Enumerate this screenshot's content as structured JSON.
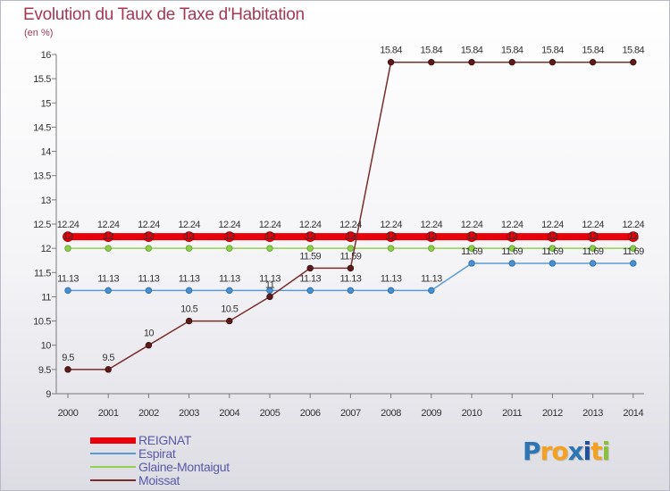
{
  "title": "Evolution du Taux de Taxe d'Habitation",
  "subtitle": "(en %)",
  "chart_data": {
    "type": "line",
    "title": "Evolution du Taux de Taxe d'Habitation",
    "ylabel": "(en %)",
    "xlabel": "",
    "x": [
      "2000",
      "2001",
      "2002",
      "2003",
      "2004",
      "2005",
      "2006",
      "2007",
      "2008",
      "2009",
      "2010",
      "2011",
      "2012",
      "2013",
      "2014"
    ],
    "ylim": [
      9,
      16
    ],
    "y_ticks": [
      "9",
      "9.5",
      "10",
      "10.5",
      "11",
      "11.5",
      "12",
      "12.5",
      "13",
      "13.5",
      "14",
      "14.5",
      "15",
      "15.5",
      "16"
    ],
    "grid": false,
    "legend_position": "bottom-left",
    "series": [
      {
        "name": "REIGNAT",
        "color": "#e8000b",
        "values": [
          12.24,
          12.24,
          12.24,
          12.24,
          12.24,
          12.24,
          12.24,
          12.24,
          12.24,
          12.24,
          12.24,
          12.24,
          12.24,
          12.24,
          12.24
        ],
        "labels": [
          "12.24",
          "12.24",
          "12.24",
          "12.24",
          "12.24",
          "12.24",
          "12.24",
          "12.24",
          "12.24",
          "12.24",
          "12.24",
          "12.24",
          "12.24",
          "12.24",
          "12.24"
        ]
      },
      {
        "name": "Espirat",
        "color": "#5b9bd5",
        "values": [
          11.13,
          11.13,
          11.13,
          11.13,
          11.13,
          11.13,
          11.13,
          11.13,
          11.13,
          11.13,
          11.69,
          11.69,
          11.69,
          11.69,
          11.69
        ],
        "labels": [
          "11.13",
          "11.13",
          "11.13",
          "11.13",
          "11.13",
          "11.13",
          "11.13",
          "11.13",
          "11.13",
          "11.13",
          "11.69",
          "11.69",
          "11.69",
          "11.69",
          "11.69"
        ]
      },
      {
        "name": "Glaine-Montaigut",
        "color": "#92d050",
        "values": [
          12,
          12,
          12,
          12,
          12,
          12,
          12,
          12,
          12,
          12,
          12,
          12,
          12,
          12,
          12
        ],
        "labels": [
          "12",
          "12",
          "12",
          "12",
          "12",
          "12",
          "12",
          "12",
          "12",
          "12",
          "12",
          "12",
          "12",
          "12",
          "12"
        ]
      },
      {
        "name": "Moissat",
        "color": "#7b2c2c",
        "values": [
          9.5,
          9.5,
          10,
          10.5,
          10.5,
          11,
          11.59,
          11.59,
          15.84,
          15.84,
          15.84,
          15.84,
          15.84,
          15.84,
          15.84
        ],
        "labels": [
          "9.5",
          "9.5",
          "10",
          "10.5",
          "10.5",
          "11",
          "11.59",
          "11.59",
          "15.84",
          "15.84",
          "15.84",
          "15.84",
          "15.84",
          "15.84",
          "15.84"
        ]
      }
    ]
  },
  "legend": [
    {
      "label": "REIGNAT",
      "color": "#e8000b"
    },
    {
      "label": "Espirat",
      "color": "#5b9bd5"
    },
    {
      "label": "Glaine-Montaigut",
      "color": "#92d050"
    },
    {
      "label": "Moissat",
      "color": "#7b2c2c"
    }
  ],
  "logo": {
    "letters": [
      "P",
      "r",
      "o",
      "x",
      "i",
      "t",
      "i"
    ],
    "colors": [
      "#2e75b6",
      "#f4a020",
      "#f4a020",
      "#2e75b6",
      "#1f4f9a",
      "#f4a020",
      "#8dbf3f"
    ]
  }
}
